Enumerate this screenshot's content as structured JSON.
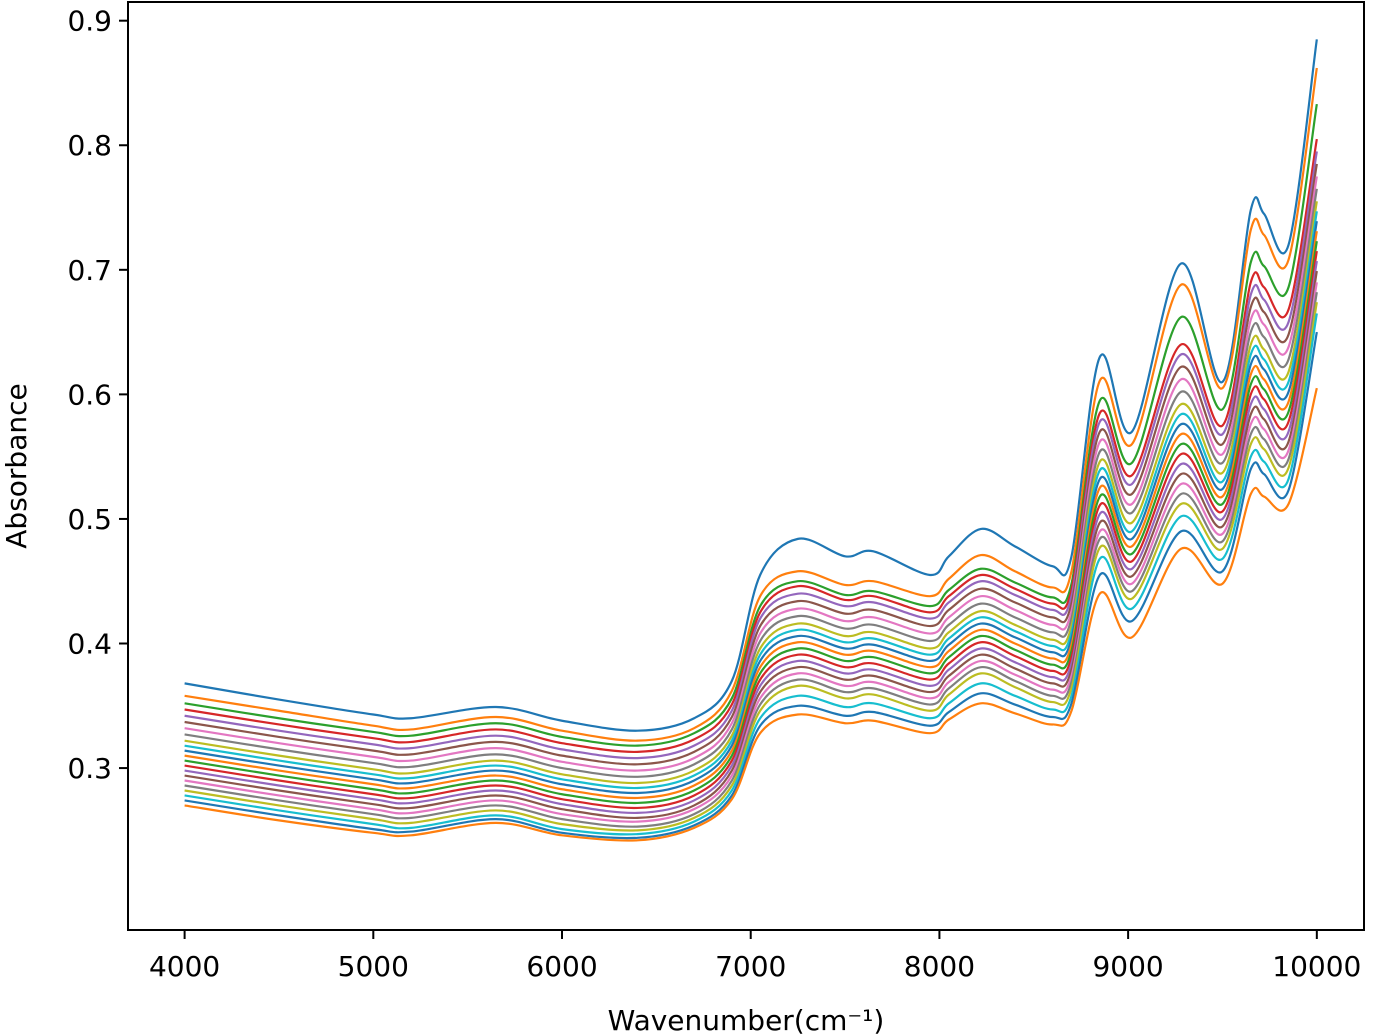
{
  "chart_data": {
    "type": "line",
    "title": "",
    "xlabel": "Wavenumber(cm⁻¹)",
    "ylabel": "Absorbance",
    "xlim": [
      3700,
      10250
    ],
    "ylim": [
      0.17,
      0.915
    ],
    "grid": false,
    "legend": "none",
    "x_ticks": [
      4000,
      5000,
      6000,
      7000,
      8000,
      9000,
      10000
    ],
    "x_tick_labels": [
      "4000",
      "5000",
      "6000",
      "7000",
      "8000",
      "9000",
      "10000"
    ],
    "y_ticks": [
      0.3,
      0.4,
      0.5,
      0.6,
      0.7,
      0.8,
      0.9
    ],
    "y_tick_labels": [
      "0.3",
      "0.4",
      "0.5",
      "0.6",
      "0.7",
      "0.8",
      "0.9"
    ],
    "color_cycle": [
      "#1f77b4",
      "#ff7f0e",
      "#2ca02c",
      "#d62728",
      "#9467bd",
      "#8c564b",
      "#e377c2",
      "#7f7f7f",
      "#bcbd22",
      "#17becf"
    ],
    "wavenumber_grid": [
      4000,
      4500,
      5000,
      5200,
      5650,
      6000,
      6400,
      6700,
      6900,
      7050,
      7250,
      7500,
      7650,
      7950,
      8050,
      8220,
      8400,
      8600,
      8700,
      8850,
      9020,
      9280,
      9500,
      9650,
      9720,
      9850,
      10000
    ],
    "series": [
      {
        "values": [
          0.368,
          0.355,
          0.343,
          0.34,
          0.349,
          0.338,
          0.33,
          0.34,
          0.37,
          0.455,
          0.484,
          0.47,
          0.474,
          0.455,
          0.47,
          0.492,
          0.478,
          0.462,
          0.47,
          0.63,
          0.57,
          0.705,
          0.61,
          0.748,
          0.745,
          0.72,
          0.885
        ]
      },
      {
        "values": [
          0.358,
          0.346,
          0.334,
          0.331,
          0.341,
          0.33,
          0.322,
          0.332,
          0.362,
          0.438,
          0.458,
          0.447,
          0.45,
          0.438,
          0.452,
          0.471,
          0.458,
          0.445,
          0.458,
          0.611,
          0.56,
          0.688,
          0.605,
          0.732,
          0.728,
          0.708,
          0.862
        ]
      },
      {
        "values": [
          0.352,
          0.34,
          0.329,
          0.326,
          0.336,
          0.325,
          0.318,
          0.328,
          0.356,
          0.43,
          0.45,
          0.439,
          0.442,
          0.43,
          0.443,
          0.46,
          0.449,
          0.437,
          0.448,
          0.595,
          0.545,
          0.662,
          0.588,
          0.706,
          0.703,
          0.686,
          0.833
        ]
      },
      {
        "values": [
          0.347,
          0.335,
          0.324,
          0.321,
          0.331,
          0.32,
          0.313,
          0.323,
          0.351,
          0.425,
          0.446,
          0.435,
          0.438,
          0.425,
          0.438,
          0.455,
          0.444,
          0.432,
          0.443,
          0.585,
          0.535,
          0.64,
          0.575,
          0.69,
          0.686,
          0.668,
          0.805
        ]
      },
      {
        "values": [
          0.342,
          0.33,
          0.319,
          0.316,
          0.326,
          0.315,
          0.308,
          0.318,
          0.346,
          0.42,
          0.44,
          0.43,
          0.433,
          0.42,
          0.433,
          0.45,
          0.439,
          0.427,
          0.438,
          0.578,
          0.528,
          0.632,
          0.568,
          0.68,
          0.676,
          0.658,
          0.795
        ]
      },
      {
        "values": [
          0.337,
          0.325,
          0.314,
          0.311,
          0.321,
          0.31,
          0.303,
          0.313,
          0.341,
          0.414,
          0.434,
          0.424,
          0.427,
          0.414,
          0.427,
          0.444,
          0.433,
          0.421,
          0.432,
          0.57,
          0.52,
          0.622,
          0.56,
          0.67,
          0.666,
          0.648,
          0.785
        ]
      },
      {
        "values": [
          0.332,
          0.32,
          0.309,
          0.306,
          0.316,
          0.305,
          0.298,
          0.308,
          0.336,
          0.408,
          0.428,
          0.418,
          0.421,
          0.408,
          0.421,
          0.438,
          0.427,
          0.415,
          0.426,
          0.562,
          0.512,
          0.612,
          0.552,
          0.66,
          0.656,
          0.638,
          0.775
        ]
      },
      {
        "values": [
          0.327,
          0.315,
          0.304,
          0.301,
          0.311,
          0.3,
          0.293,
          0.303,
          0.331,
          0.402,
          0.422,
          0.412,
          0.415,
          0.402,
          0.415,
          0.432,
          0.421,
          0.409,
          0.42,
          0.554,
          0.505,
          0.602,
          0.545,
          0.65,
          0.646,
          0.628,
          0.765
        ]
      },
      {
        "values": [
          0.322,
          0.31,
          0.299,
          0.296,
          0.306,
          0.295,
          0.288,
          0.298,
          0.326,
          0.396,
          0.416,
          0.406,
          0.409,
          0.396,
          0.409,
          0.426,
          0.415,
          0.403,
          0.414,
          0.546,
          0.497,
          0.592,
          0.537,
          0.64,
          0.636,
          0.618,
          0.755
        ]
      },
      {
        "values": [
          0.318,
          0.306,
          0.295,
          0.292,
          0.302,
          0.291,
          0.284,
          0.294,
          0.322,
          0.391,
          0.411,
          0.401,
          0.404,
          0.391,
          0.404,
          0.421,
          0.41,
          0.398,
          0.409,
          0.539,
          0.49,
          0.584,
          0.53,
          0.632,
          0.628,
          0.61,
          0.747
        ]
      },
      {
        "values": [
          0.314,
          0.302,
          0.291,
          0.288,
          0.298,
          0.287,
          0.28,
          0.29,
          0.318,
          0.386,
          0.406,
          0.396,
          0.399,
          0.386,
          0.399,
          0.416,
          0.405,
          0.393,
          0.404,
          0.532,
          0.484,
          0.576,
          0.524,
          0.624,
          0.62,
          0.602,
          0.739
        ]
      },
      {
        "values": [
          0.31,
          0.298,
          0.287,
          0.284,
          0.294,
          0.283,
          0.276,
          0.286,
          0.314,
          0.381,
          0.401,
          0.391,
          0.394,
          0.381,
          0.394,
          0.411,
          0.4,
          0.388,
          0.399,
          0.525,
          0.478,
          0.568,
          0.518,
          0.616,
          0.612,
          0.594,
          0.731
        ]
      },
      {
        "values": [
          0.306,
          0.294,
          0.283,
          0.28,
          0.29,
          0.279,
          0.272,
          0.282,
          0.31,
          0.376,
          0.396,
          0.386,
          0.389,
          0.376,
          0.389,
          0.406,
          0.395,
          0.383,
          0.394,
          0.518,
          0.472,
          0.56,
          0.512,
          0.608,
          0.604,
          0.586,
          0.723
        ]
      },
      {
        "values": [
          0.302,
          0.29,
          0.279,
          0.276,
          0.286,
          0.275,
          0.268,
          0.278,
          0.306,
          0.371,
          0.391,
          0.381,
          0.384,
          0.371,
          0.384,
          0.401,
          0.39,
          0.378,
          0.389,
          0.511,
          0.466,
          0.552,
          0.506,
          0.6,
          0.596,
          0.578,
          0.715
        ]
      },
      {
        "values": [
          0.298,
          0.286,
          0.275,
          0.272,
          0.282,
          0.271,
          0.264,
          0.274,
          0.302,
          0.366,
          0.386,
          0.376,
          0.379,
          0.366,
          0.379,
          0.396,
          0.385,
          0.373,
          0.384,
          0.504,
          0.46,
          0.544,
          0.5,
          0.592,
          0.588,
          0.57,
          0.707
        ]
      },
      {
        "values": [
          0.294,
          0.282,
          0.271,
          0.268,
          0.278,
          0.267,
          0.26,
          0.27,
          0.298,
          0.361,
          0.381,
          0.371,
          0.374,
          0.361,
          0.374,
          0.391,
          0.38,
          0.368,
          0.379,
          0.497,
          0.454,
          0.536,
          0.494,
          0.584,
          0.58,
          0.562,
          0.699
        ]
      },
      {
        "values": [
          0.29,
          0.278,
          0.267,
          0.264,
          0.274,
          0.263,
          0.257,
          0.267,
          0.294,
          0.356,
          0.376,
          0.366,
          0.369,
          0.356,
          0.369,
          0.386,
          0.375,
          0.363,
          0.374,
          0.49,
          0.448,
          0.528,
          0.488,
          0.576,
          0.572,
          0.555,
          0.69
        ]
      },
      {
        "values": [
          0.286,
          0.274,
          0.263,
          0.26,
          0.27,
          0.259,
          0.253,
          0.263,
          0.29,
          0.351,
          0.371,
          0.361,
          0.364,
          0.351,
          0.364,
          0.381,
          0.37,
          0.358,
          0.369,
          0.484,
          0.442,
          0.52,
          0.482,
          0.568,
          0.564,
          0.548,
          0.682
        ]
      },
      {
        "values": [
          0.282,
          0.27,
          0.259,
          0.256,
          0.266,
          0.255,
          0.25,
          0.26,
          0.286,
          0.346,
          0.366,
          0.356,
          0.359,
          0.346,
          0.359,
          0.376,
          0.365,
          0.353,
          0.364,
          0.477,
          0.436,
          0.512,
          0.476,
          0.56,
          0.556,
          0.541,
          0.674
        ]
      },
      {
        "values": [
          0.278,
          0.266,
          0.255,
          0.252,
          0.262,
          0.251,
          0.247,
          0.257,
          0.282,
          0.34,
          0.358,
          0.349,
          0.352,
          0.34,
          0.352,
          0.368,
          0.358,
          0.347,
          0.358,
          0.468,
          0.428,
          0.502,
          0.468,
          0.55,
          0.546,
          0.532,
          0.665
        ]
      },
      {
        "values": [
          0.274,
          0.262,
          0.251,
          0.249,
          0.259,
          0.248,
          0.244,
          0.254,
          0.278,
          0.334,
          0.35,
          0.342,
          0.345,
          0.334,
          0.345,
          0.36,
          0.351,
          0.341,
          0.352,
          0.455,
          0.418,
          0.49,
          0.458,
          0.54,
          0.536,
          0.523,
          0.65
        ]
      },
      {
        "values": [
          0.27,
          0.258,
          0.248,
          0.246,
          0.256,
          0.246,
          0.242,
          0.252,
          0.275,
          0.328,
          0.343,
          0.336,
          0.338,
          0.328,
          0.339,
          0.352,
          0.344,
          0.335,
          0.346,
          0.44,
          0.405,
          0.476,
          0.448,
          0.52,
          0.518,
          0.512,
          0.605
        ]
      }
    ]
  }
}
